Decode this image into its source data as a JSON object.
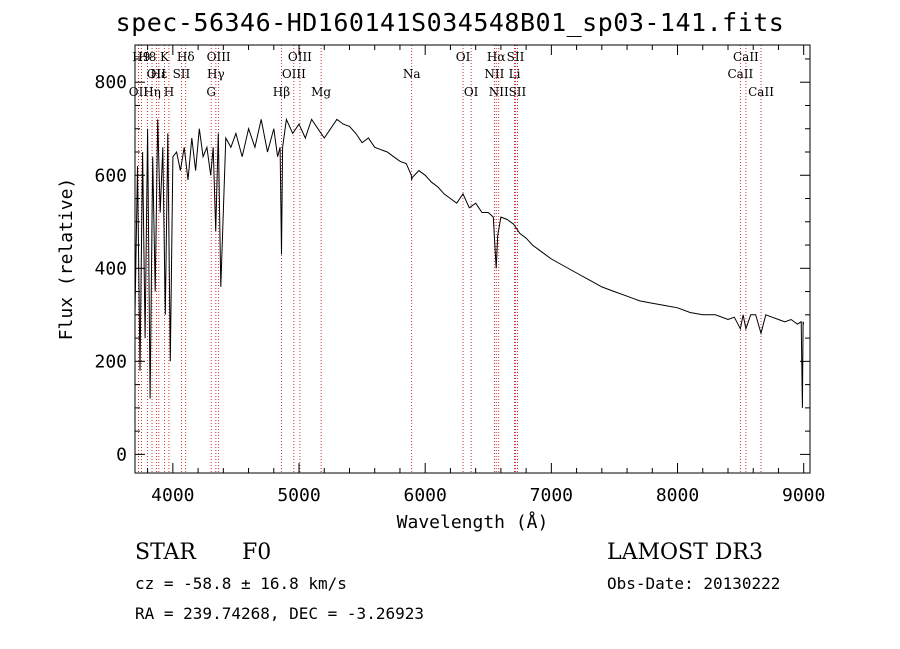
{
  "header": {
    "title": "spec-56346-HD160141S034548B01_sp03-141.fits"
  },
  "info": {
    "object_type": "STAR",
    "subclass": "F0",
    "survey": "LAMOST DR3",
    "cz": "cz = -58.8 ± 16.8 km/s",
    "obs_date": "Obs-Date: 20130222",
    "radec": "RA = 239.74268, DEC =  -3.26923"
  },
  "colors": {
    "spectrum": "#000000",
    "line_marker": "#c00000",
    "axis": "#000000"
  },
  "chart_data": {
    "type": "line",
    "title": "spec-56346-HD160141S034548B01_sp03-141.fits",
    "xlabel": "Wavelength (Å)",
    "ylabel": "Flux (relative)",
    "xlim": [
      3700,
      9050
    ],
    "ylim": [
      -40,
      880
    ],
    "xticks": [
      4000,
      5000,
      6000,
      7000,
      8000,
      9000
    ],
    "yticks": [
      0,
      200,
      400,
      600,
      800
    ],
    "grid": false,
    "series": [
      {
        "name": "spectrum",
        "x": [
          3700,
          3720,
          3740,
          3760,
          3780,
          3800,
          3820,
          3840,
          3860,
          3880,
          3900,
          3920,
          3940,
          3960,
          3980,
          4000,
          4030,
          4060,
          4090,
          4120,
          4150,
          4180,
          4210,
          4240,
          4270,
          4300,
          4320,
          4340,
          4360,
          4380,
          4420,
          4460,
          4500,
          4550,
          4600,
          4650,
          4700,
          4750,
          4800,
          4830,
          4850,
          4861,
          4870,
          4900,
          4950,
          5000,
          5050,
          5100,
          5150,
          5200,
          5250,
          5300,
          5350,
          5400,
          5450,
          5500,
          5550,
          5600,
          5650,
          5700,
          5750,
          5800,
          5850,
          5890,
          5893,
          5896,
          5950,
          6000,
          6050,
          6100,
          6150,
          6200,
          6250,
          6300,
          6350,
          6400,
          6450,
          6500,
          6540,
          6550,
          6563,
          6575,
          6600,
          6650,
          6700,
          6750,
          6800,
          6850,
          6900,
          6950,
          7000,
          7100,
          7200,
          7300,
          7400,
          7500,
          7600,
          7700,
          7800,
          7900,
          8000,
          8100,
          8200,
          8300,
          8400,
          8450,
          8498,
          8520,
          8542,
          8580,
          8620,
          8662,
          8700,
          8750,
          8800,
          8850,
          8900,
          8950,
          8980,
          8990,
          8995,
          9000
        ],
        "y": [
          300,
          620,
          180,
          650,
          250,
          700,
          120,
          640,
          350,
          720,
          520,
          660,
          300,
          690,
          200,
          640,
          650,
          610,
          660,
          590,
          680,
          610,
          700,
          640,
          660,
          600,
          660,
          480,
          690,
          360,
          680,
          660,
          690,
          640,
          700,
          660,
          720,
          650,
          700,
          640,
          660,
          430,
          660,
          720,
          690,
          710,
          680,
          720,
          700,
          680,
          700,
          720,
          710,
          705,
          690,
          670,
          680,
          660,
          655,
          650,
          640,
          630,
          625,
          600,
          590,
          595,
          610,
          600,
          585,
          575,
          560,
          550,
          540,
          560,
          530,
          540,
          520,
          520,
          510,
          460,
          400,
          470,
          510,
          505,
          495,
          475,
          465,
          450,
          440,
          430,
          420,
          405,
          390,
          375,
          360,
          350,
          340,
          330,
          325,
          320,
          315,
          305,
          300,
          300,
          290,
          295,
          270,
          300,
          270,
          300,
          300,
          260,
          300,
          295,
          290,
          285,
          290,
          280,
          285,
          100,
          285,
          280
        ]
      }
    ],
    "line_markers": [
      {
        "wavelength": 3727,
        "label": "OII",
        "row": 3
      },
      {
        "wavelength": 3750,
        "label": "H9",
        "row": 1
      },
      {
        "wavelength": 3798,
        "label": "H8",
        "row": 1
      },
      {
        "wavelength": 3835,
        "label": "Hη",
        "row": 3
      },
      {
        "wavelength": 3869,
        "label": "OII",
        "row": 2
      },
      {
        "wavelength": 3889,
        "label": "Hε",
        "row": 2
      },
      {
        "wavelength": 3934,
        "label": "K",
        "row": 1
      },
      {
        "wavelength": 3969,
        "label": "H",
        "row": 3
      },
      {
        "wavelength": 4068,
        "label": "SII",
        "row": 2
      },
      {
        "wavelength": 4102,
        "label": "Hδ",
        "row": 1
      },
      {
        "wavelength": 4304,
        "label": "G",
        "row": 3
      },
      {
        "wavelength": 4341,
        "label": "Hγ",
        "row": 2
      },
      {
        "wavelength": 4363,
        "label": "OIII",
        "row": 1
      },
      {
        "wavelength": 4861,
        "label": "Hβ",
        "row": 3
      },
      {
        "wavelength": 4959,
        "label": "OIII",
        "row": 2
      },
      {
        "wavelength": 5007,
        "label": "OIII",
        "row": 1
      },
      {
        "wavelength": 5175,
        "label": "Mg",
        "row": 3
      },
      {
        "wavelength": 5893,
        "label": "Na",
        "row": 2
      },
      {
        "wavelength": 6300,
        "label": "OI",
        "row": 1
      },
      {
        "wavelength": 6364,
        "label": "OI",
        "row": 3
      },
      {
        "wavelength": 6548,
        "label": "NII",
        "row": 2
      },
      {
        "wavelength": 6563,
        "label": "Hα",
        "row": 1
      },
      {
        "wavelength": 6583,
        "label": "NII",
        "row": 3
      },
      {
        "wavelength": 6708,
        "label": "Li",
        "row": 2
      },
      {
        "wavelength": 6716,
        "label": "SII",
        "row": 1
      },
      {
        "wavelength": 6731,
        "label": "SII",
        "row": 3
      },
      {
        "wavelength": 8498,
        "label": "CaII",
        "row": 2
      },
      {
        "wavelength": 8542,
        "label": "CaII",
        "row": 1
      },
      {
        "wavelength": 8662,
        "label": "CaII",
        "row": 3
      }
    ]
  }
}
